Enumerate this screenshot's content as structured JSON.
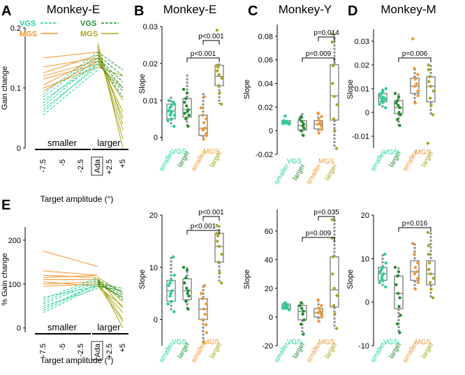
{
  "figure": {
    "panel_letters": [
      "A",
      "B",
      "C",
      "D",
      "E"
    ],
    "colors": {
      "vgs_smaller": "#1fd39a",
      "vgs_larger": "#1e8f2e",
      "mgs_smaller": "#f5962a",
      "mgs_larger": "#a8a81a",
      "box": "#8c8c8c",
      "axis": "#000000"
    }
  },
  "chart_data": [
    {
      "id": "A",
      "type": "line",
      "title": "Monkey-E",
      "ylabel": "Gain change",
      "xlabel": "Target amplitude (°)",
      "ylim": [
        0,
        0.2
      ],
      "yticks": [
        0,
        0.1,
        0.2
      ],
      "ytick_labels": [
        "0",
        "0.1",
        "0.2"
      ],
      "x_categories": [
        "-7.5",
        "-5",
        "-2.5",
        "Ada",
        "+2.5",
        "+5"
      ],
      "group_labels": [
        "smaller",
        "larger"
      ],
      "legend": [
        {
          "label": "VGS",
          "color": "#1fd39a",
          "dash": true,
          "series": "smaller"
        },
        {
          "label": "VGS",
          "color": "#1e8f2e",
          "dash": true,
          "series": "larger"
        },
        {
          "label": "MGS",
          "color": "#f5962a",
          "dash": false,
          "series": "smaller"
        },
        {
          "label": "MGS",
          "color": "#a8a81a",
          "dash": false,
          "series": "larger"
        }
      ],
      "series": {
        "vgs_smaller": [
          [
            0.06,
            0.14
          ],
          [
            0.065,
            0.135
          ],
          [
            0.07,
            0.145
          ],
          [
            0.075,
            0.15
          ],
          [
            0.08,
            0.14
          ],
          [
            0.085,
            0.155
          ],
          [
            0.055,
            0.13
          ],
          [
            0.09,
            0.16
          ]
        ],
        "vgs_larger": [
          [
            0.15,
            0.11
          ],
          [
            0.145,
            0.085
          ],
          [
            0.155,
            0.12
          ],
          [
            0.15,
            0.1
          ],
          [
            0.16,
            0.13
          ],
          [
            0.14,
            0.095
          ]
        ],
        "mgs_smaller": [
          [
            0.15,
            0.16
          ],
          [
            0.135,
            0.15
          ],
          [
            0.12,
            0.145
          ],
          [
            0.115,
            0.14
          ],
          [
            0.105,
            0.15
          ],
          [
            0.1,
            0.135
          ],
          [
            0.095,
            0.145
          ],
          [
            0.125,
            0.155
          ]
        ],
        "mgs_larger": [
          [
            0.175,
            0.0
          ],
          [
            0.165,
            0.015
          ],
          [
            0.16,
            0.03
          ],
          [
            0.15,
            0.06
          ],
          [
            0.145,
            0.08
          ],
          [
            0.14,
            0.1
          ],
          [
            0.155,
            0.05
          ],
          [
            0.17,
            0.04
          ],
          [
            0.135,
            0.12
          ]
        ]
      }
    },
    {
      "id": "B",
      "type": "box",
      "title": "Monkey-E",
      "ylabel": "Slope",
      "ylim": [
        -0.001,
        0.03
      ],
      "yticks": [
        0,
        0.01,
        0.02,
        0.03
      ],
      "ytick_labels": [
        "0",
        "0.01",
        "0.02",
        "0.03"
      ],
      "categories": [
        "smaller",
        "larger",
        "smaller",
        "larger"
      ],
      "task_labels": [
        "VGS",
        "MGS"
      ],
      "boxes": [
        {
          "q1": 0.005,
          "median": 0.0072,
          "q3": 0.009,
          "whislo": 0.003,
          "whishi": 0.011,
          "points": [
            0.003,
            0.0045,
            0.005,
            0.006,
            0.0065,
            0.007,
            0.0072,
            0.008,
            0.0085,
            0.009,
            0.0095,
            0.01,
            0.006
          ]
        },
        {
          "q1": 0.0055,
          "median": 0.0075,
          "q3": 0.0105,
          "whislo": 0.003,
          "whishi": 0.017,
          "points": [
            0.003,
            0.005,
            0.006,
            0.007,
            0.0075,
            0.0085,
            0.0095,
            0.0105,
            0.012,
            0.013,
            0.0065
          ]
        },
        {
          "q1": 0.0005,
          "median": 0.0025,
          "q3": 0.006,
          "whislo": -0.0005,
          "whishi": 0.012,
          "points": [
            -0.0005,
            0.0005,
            0.001,
            0.002,
            0.0025,
            0.004,
            0.005,
            0.006,
            0.008,
            0.011
          ]
        },
        {
          "q1": 0.014,
          "median": 0.0165,
          "q3": 0.0195,
          "whislo": 0.009,
          "whishi": 0.02,
          "points": [
            0.009,
            0.012,
            0.014,
            0.016,
            0.017,
            0.018,
            0.019,
            0.0195,
            0.029
          ]
        }
      ],
      "brackets": [
        {
          "from": 2,
          "to": 3,
          "text": "p<0.001"
        },
        {
          "from": 1,
          "to": 3,
          "text": "p<0.001"
        }
      ]
    },
    {
      "id": "C",
      "type": "box",
      "title": "Monkey-Y",
      "ylabel": "Slope",
      "ylim": [
        -0.02,
        0.09
      ],
      "yticks": [
        -0.02,
        0,
        0.02,
        0.04,
        0.06,
        0.08
      ],
      "ytick_labels": [
        "-0.02",
        "0",
        "0.02",
        "0.04",
        "0.06",
        "0.08"
      ],
      "categories": [
        "smaller",
        "larger",
        "smaller",
        "larger"
      ],
      "task_labels": [
        "VGS",
        "MGS"
      ],
      "boxes": [
        {
          "q1": 0.006,
          "median": 0.0072,
          "q3": 0.0085,
          "whislo": 0.0055,
          "whishi": 0.009,
          "points": [
            0.0055,
            0.006,
            0.0065,
            0.007,
            0.0075,
            0.008,
            0.0085,
            0.0125
          ]
        },
        {
          "q1": 0.0005,
          "median": 0.0045,
          "q3": 0.0085,
          "whislo": -0.004,
          "whishi": 0.015,
          "points": [
            -0.004,
            0.0,
            0.002,
            0.004,
            0.006,
            0.008,
            0.01,
            0.012
          ]
        },
        {
          "q1": 0.0015,
          "median": 0.0055,
          "q3": 0.0085,
          "whislo": -0.002,
          "whishi": 0.015,
          "points": [
            -0.002,
            0.001,
            0.004,
            0.0055,
            0.007,
            0.009,
            0.012,
            0.015
          ]
        },
        {
          "q1": 0.009,
          "median": 0.0295,
          "q3": 0.056,
          "whislo": -0.015,
          "whishi": 0.082,
          "points": [
            -0.015,
            0.0,
            0.01,
            0.022,
            0.029,
            0.04,
            0.055,
            0.075,
            0.082
          ]
        }
      ],
      "brackets": [
        {
          "from": 2,
          "to": 3,
          "text": "p=0.014"
        },
        {
          "from": 1,
          "to": 3,
          "text": "p=0.009"
        }
      ]
    },
    {
      "id": "D",
      "type": "box",
      "title": "Monkey-M",
      "ylabel": "Slope",
      "ylim": [
        -0.015,
        0.035
      ],
      "yticks": [
        -0.01,
        0,
        0.01,
        0.02,
        0.03
      ],
      "ytick_labels": [
        "-0.01",
        "0",
        "0.01",
        "0.02",
        "0.03"
      ],
      "categories": [
        "smaller",
        "larger",
        "smaller",
        "larger"
      ],
      "task_labels": [
        "VGS",
        "MGS"
      ],
      "boxes": [
        {
          "q1": 0.0045,
          "median": 0.006,
          "q3": 0.008,
          "whislo": 0.002,
          "whishi": 0.01,
          "points": [
            0.002,
            0.0035,
            0.0045,
            0.005,
            0.006,
            0.0065,
            0.007,
            0.008,
            0.009,
            0.01,
            0.0055
          ]
        },
        {
          "q1": -0.0005,
          "median": 0.002,
          "q3": 0.005,
          "whislo": -0.0055,
          "whishi": 0.008,
          "points": [
            -0.0055,
            -0.003,
            -0.001,
            0.0,
            0.002,
            0.003,
            0.004,
            0.005,
            0.0065,
            0.008
          ]
        },
        {
          "q1": 0.008,
          "median": 0.011,
          "q3": 0.0145,
          "whislo": 0.004,
          "whishi": 0.0185,
          "points": [
            0.004,
            0.007,
            0.009,
            0.011,
            0.012,
            0.014,
            0.016,
            0.0185,
            0.031
          ]
        },
        {
          "q1": 0.0045,
          "median": 0.011,
          "q3": 0.015,
          "whislo": -0.001,
          "whishi": 0.02,
          "points": [
            -0.001,
            0.003,
            0.006,
            0.009,
            0.011,
            0.013,
            0.015,
            0.018,
            0.02,
            -0.013
          ]
        }
      ],
      "brackets": [
        {
          "from": 1,
          "to": 3,
          "text": "p=0.006"
        }
      ]
    },
    {
      "id": "E",
      "type": "line",
      "title": "",
      "ylabel": "% Gain change",
      "xlabel": "Target amplitude (°)",
      "ylim": [
        -10,
        230
      ],
      "yticks": [
        0,
        100,
        200
      ],
      "ytick_labels": [
        "0",
        "100",
        "200"
      ],
      "x_categories": [
        "-7.5",
        "-5",
        "-2.5",
        "Ada",
        "+2.5",
        "+5"
      ],
      "group_labels": [
        "smaller",
        "larger"
      ],
      "series": {
        "vgs_smaller": [
          [
            35,
            95
          ],
          [
            45,
            100
          ],
          [
            55,
            105
          ],
          [
            60,
            110
          ],
          [
            70,
            95
          ],
          [
            50,
            90
          ],
          [
            40,
            100
          ],
          [
            65,
            115
          ]
        ],
        "vgs_larger": [
          [
            105,
            75
          ],
          [
            100,
            70
          ],
          [
            110,
            80
          ],
          [
            95,
            85
          ],
          [
            108,
            65
          ],
          [
            102,
            90
          ]
        ],
        "mgs_smaller": [
          [
            175,
            140
          ],
          [
            130,
            120
          ],
          [
            120,
            115
          ],
          [
            110,
            110
          ],
          [
            100,
            105
          ],
          [
            95,
            100
          ],
          [
            105,
            95
          ],
          [
            115,
            120
          ]
        ],
        "mgs_larger": [
          [
            110,
            0
          ],
          [
            105,
            20
          ],
          [
            100,
            35
          ],
          [
            95,
            50
          ],
          [
            108,
            60
          ],
          [
            112,
            45
          ],
          [
            102,
            70
          ],
          [
            98,
            15
          ],
          [
            115,
            80
          ]
        ]
      }
    },
    {
      "id": "F",
      "type": "box",
      "title": "",
      "ylabel": "Slope",
      "ylim": [
        -5,
        20
      ],
      "yticks": [
        0,
        10,
        20
      ],
      "ytick_labels": [
        "0",
        "10",
        "20"
      ],
      "categories": [
        "smaller",
        "larger",
        "smaller",
        "larger"
      ],
      "task_labels": [
        "VGS",
        "MGS"
      ],
      "boxes": [
        {
          "q1": 3.5,
          "median": 5.5,
          "q3": 7.5,
          "whislo": 1.5,
          "whishi": 12.0,
          "points": [
            1.5,
            3.0,
            3.5,
            4.5,
            5.0,
            5.5,
            6.5,
            7.0,
            7.5,
            8.5,
            12.0
          ]
        },
        {
          "q1": 3.8,
          "median": 5.5,
          "q3": 7.8,
          "whislo": 2.0,
          "whishi": 10.0,
          "points": [
            2.0,
            3.5,
            4.5,
            5.0,
            5.5,
            6.0,
            7.0,
            8.0,
            9.5,
            10.0
          ]
        },
        {
          "q1": 0.0,
          "median": 2.0,
          "q3": 4.0,
          "whislo": -4.5,
          "whishi": 6.5,
          "points": [
            -4.5,
            -2.5,
            -1.0,
            0.0,
            1.0,
            2.0,
            3.0,
            4.0,
            5.0,
            6.5
          ]
        },
        {
          "q1": 11.0,
          "median": 14.0,
          "q3": 16.5,
          "whislo": 7.0,
          "whishi": 18.0,
          "points": [
            7.0,
            9.0,
            11.0,
            12.5,
            14.0,
            15.0,
            16.0,
            16.5,
            18.0
          ]
        }
      ],
      "brackets": [
        {
          "from": 2,
          "to": 3,
          "text": "p<0.001"
        },
        {
          "from": 1,
          "to": 3,
          "text": "p<0.001"
        }
      ]
    },
    {
      "id": "G",
      "type": "box",
      "title": "",
      "ylabel": "Slope",
      "ylim": [
        -20,
        75
      ],
      "yticks": [
        -20,
        0,
        20,
        40,
        60
      ],
      "ytick_labels": [
        "-20",
        "0",
        "20",
        "40",
        "60"
      ],
      "categories": [
        "smaller",
        "larger",
        "smaller",
        "larger"
      ],
      "task_labels": [
        "VGS",
        "MGS"
      ],
      "boxes": [
        {
          "q1": 6.0,
          "median": 7.5,
          "q3": 9.0,
          "whislo": 5.0,
          "whishi": 10.0,
          "points": [
            5.0,
            6.0,
            6.5,
            7.0,
            7.5,
            8.0,
            9.0,
            10.0
          ]
        },
        {
          "q1": -2.0,
          "median": 4.0,
          "q3": 8.0,
          "whislo": -12.0,
          "whishi": 10.0,
          "points": [
            -12.0,
            -5.0,
            -2.0,
            2.0,
            4.0,
            6.0,
            8.0,
            10.0
          ]
        },
        {
          "q1": 0.0,
          "median": 3.0,
          "q3": 6.0,
          "whislo": -3.0,
          "whishi": 12.0,
          "points": [
            -3.0,
            0.0,
            2.0,
            3.0,
            4.0,
            6.0,
            8.0,
            12.0
          ]
        },
        {
          "q1": 7.0,
          "median": 19.0,
          "q3": 42.0,
          "whislo": -8.0,
          "whishi": 68.0,
          "points": [
            -8.0,
            2.0,
            8.0,
            15.0,
            20.0,
            30.0,
            42.0,
            55.0,
            68.0
          ]
        }
      ],
      "brackets": [
        {
          "from": 2,
          "to": 3,
          "text": "p=0.035"
        },
        {
          "from": 1,
          "to": 3,
          "text": "p=0.009"
        }
      ]
    },
    {
      "id": "H",
      "type": "box",
      "title": "",
      "ylabel": "Slope",
      "ylim": [
        -10,
        20
      ],
      "yticks": [
        -10,
        0,
        10,
        20
      ],
      "ytick_labels": [
        "-10",
        "0",
        "10",
        "20"
      ],
      "categories": [
        "smaller",
        "larger",
        "smaller",
        "larger"
      ],
      "task_labels": [
        "VGS",
        "MGS"
      ],
      "boxes": [
        {
          "q1": 5.0,
          "median": 6.5,
          "q3": 8.0,
          "whislo": 3.5,
          "whishi": 11.0,
          "points": [
            3.5,
            4.5,
            5.0,
            5.5,
            6.0,
            6.5,
            7.0,
            7.5,
            8.0,
            9.0,
            11.0
          ]
        },
        {
          "q1": -1.5,
          "median": 2.0,
          "q3": 6.0,
          "whislo": -7.0,
          "whishi": 8.0,
          "points": [
            -7.0,
            -5.0,
            -3.0,
            -1.0,
            1.0,
            2.0,
            4.0,
            6.0,
            7.0,
            8.0
          ]
        },
        {
          "q1": 5.0,
          "median": 7.0,
          "q3": 9.5,
          "whislo": 3.0,
          "whishi": 13.5,
          "points": [
            3.0,
            4.5,
            5.5,
            6.5,
            7.0,
            8.0,
            9.0,
            11.0,
            13.5
          ]
        },
        {
          "q1": 4.0,
          "median": 6.5,
          "q3": 9.5,
          "whislo": 1.0,
          "whishi": 16.0,
          "points": [
            1.0,
            3.0,
            4.5,
            5.5,
            6.5,
            7.5,
            9.0,
            11.0,
            13.0,
            16.0
          ]
        }
      ],
      "brackets": [
        {
          "from": 1,
          "to": 3,
          "text": "p=0.016"
        }
      ]
    }
  ]
}
